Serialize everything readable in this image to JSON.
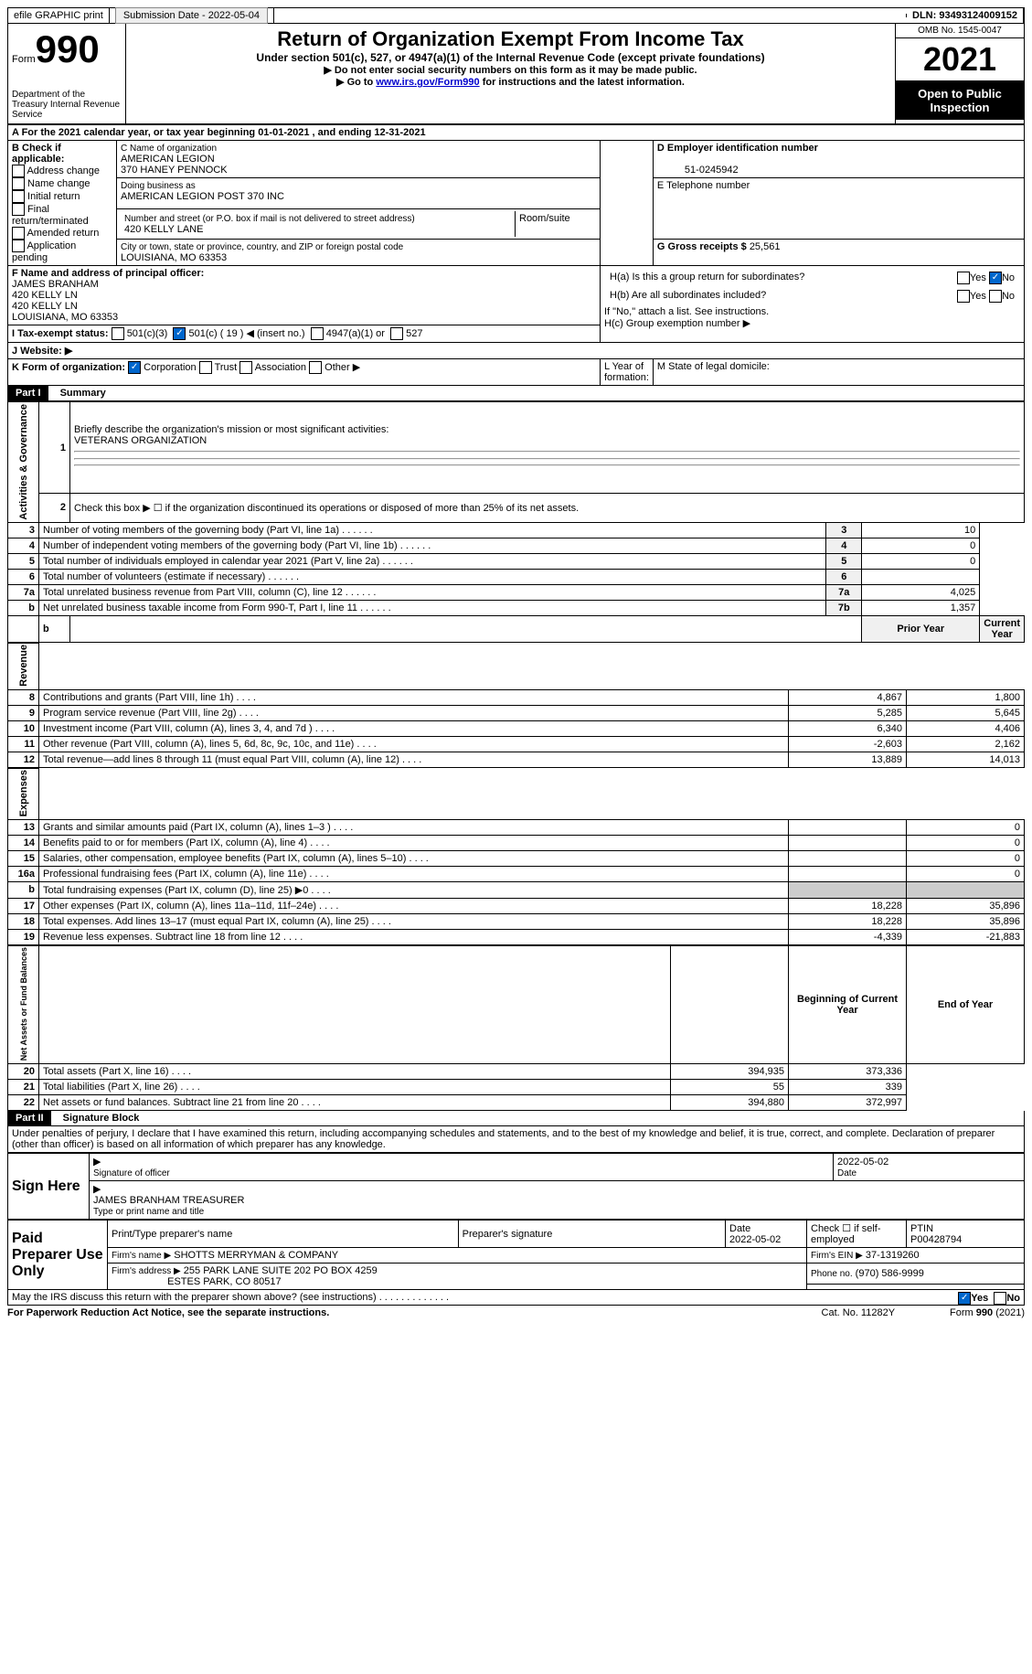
{
  "topbar": {
    "efile": "efile GRAPHIC print",
    "submission_label": "Submission Date - 2022-05-04",
    "dln_label": "DLN: 93493124009152"
  },
  "header": {
    "form_word": "Form",
    "form_number": "990",
    "dept": "Department of the Treasury Internal Revenue Service",
    "title": "Return of Organization Exempt From Income Tax",
    "subtitle": "Under section 501(c), 527, or 4947(a)(1) of the Internal Revenue Code (except private foundations)",
    "note1": "▶ Do not enter social security numbers on this form as it may be made public.",
    "note2_pre": "▶ Go to ",
    "note2_link": "www.irs.gov/Form990",
    "note2_post": " for instructions and the latest information.",
    "omb": "OMB No. 1545-0047",
    "year": "2021",
    "inspection": "Open to Public Inspection"
  },
  "lineA": "A For the 2021 calendar year, or tax year beginning 01-01-2021    , and ending 12-31-2021",
  "blockB": {
    "label": "B Check if applicable:",
    "opts": [
      "Address change",
      "Name change",
      "Initial return",
      "Final return/terminated",
      "Amended return",
      "Application pending"
    ]
  },
  "blockC": {
    "label": "C Name of organization",
    "name1": "AMERICAN LEGION",
    "name2": "370 HANEY PENNOCK",
    "dba_label": "Doing business as",
    "dba": "AMERICAN LEGION POST 370 INC",
    "street_label": "Number and street (or P.O. box if mail is not delivered to street address)",
    "street": "420 KELLY LANE",
    "room_label": "Room/suite",
    "city_label": "City or town, state or province, country, and ZIP or foreign postal code",
    "city": "LOUISIANA, MO  63353"
  },
  "blockD": {
    "label": "D Employer identification number",
    "value": "51-0245942"
  },
  "blockE": {
    "label": "E Telephone number"
  },
  "blockG": {
    "label": "G Gross receipts $ ",
    "value": "25,561"
  },
  "blockF": {
    "label": "F  Name and address of principal officer:",
    "name": "JAMES BRANHAM",
    "l1": "420 KELLY LN",
    "l2": "420 KELLY LN",
    "l3": "LOUISIANA, MO  63353"
  },
  "blockH": {
    "ha": "H(a)  Is this a group return for subordinates?",
    "hb": "H(b)  Are all subordinates included?",
    "hnote": "If \"No,\" attach a list. See instructions.",
    "hc": "H(c)  Group exemption number ▶",
    "yes": "Yes",
    "no": "No"
  },
  "lineI": {
    "label": "I    Tax-exempt status:",
    "c3": "501(c)(3)",
    "c": "501(c) ( 19 ) ◀ (insert no.)",
    "a1": "4947(a)(1) or",
    "s527": "527"
  },
  "lineJ": "J   Website: ▶",
  "lineK": {
    "label": "K Form of organization:",
    "corp": "Corporation",
    "trust": "Trust",
    "assoc": "Association",
    "other": "Other ▶"
  },
  "lineL": "L Year of formation:",
  "lineM": "M State of legal domicile:",
  "part1": {
    "title": "Part I",
    "heading": "Summary",
    "side_gov": "Activities & Governance",
    "side_rev": "Revenue",
    "side_exp": "Expenses",
    "side_net": "Net Assets or Fund Balances",
    "l1": "Briefly describe the organization's mission or most significant activities:",
    "mission": "VETERANS ORGANIZATION",
    "l2": "Check this box ▶ ☐  if the organization discontinued its operations or disposed of more than 25% of its net assets.",
    "rows_gov": [
      {
        "n": "3",
        "t": "Number of voting members of the governing body (Part VI, line 1a)",
        "b": "3",
        "v": "10"
      },
      {
        "n": "4",
        "t": "Number of independent voting members of the governing body (Part VI, line 1b)",
        "b": "4",
        "v": "0"
      },
      {
        "n": "5",
        "t": "Total number of individuals employed in calendar year 2021 (Part V, line 2a)",
        "b": "5",
        "v": "0"
      },
      {
        "n": "6",
        "t": "Total number of volunteers (estimate if necessary)",
        "b": "6",
        "v": ""
      },
      {
        "n": "7a",
        "t": "Total unrelated business revenue from Part VIII, column (C), line 12",
        "b": "7a",
        "v": "4,025"
      },
      {
        "n": "b",
        "t": "Net unrelated business taxable income from Form 990-T, Part I, line 11",
        "b": "7b",
        "v": "1,357"
      }
    ],
    "prior": "Prior Year",
    "current": "Current Year",
    "rows_rev": [
      {
        "n": "8",
        "t": "Contributions and grants (Part VIII, line 1h)",
        "p": "4,867",
        "c": "1,800"
      },
      {
        "n": "9",
        "t": "Program service revenue (Part VIII, line 2g)",
        "p": "5,285",
        "c": "5,645"
      },
      {
        "n": "10",
        "t": "Investment income (Part VIII, column (A), lines 3, 4, and 7d )",
        "p": "6,340",
        "c": "4,406"
      },
      {
        "n": "11",
        "t": "Other revenue (Part VIII, column (A), lines 5, 6d, 8c, 9c, 10c, and 11e)",
        "p": "-2,603",
        "c": "2,162"
      },
      {
        "n": "12",
        "t": "Total revenue—add lines 8 through 11 (must equal Part VIII, column (A), line 12)",
        "p": "13,889",
        "c": "14,013"
      }
    ],
    "rows_exp": [
      {
        "n": "13",
        "t": "Grants and similar amounts paid (Part IX, column (A), lines 1–3 )",
        "p": "",
        "c": "0"
      },
      {
        "n": "14",
        "t": "Benefits paid to or for members (Part IX, column (A), line 4)",
        "p": "",
        "c": "0"
      },
      {
        "n": "15",
        "t": "Salaries, other compensation, employee benefits (Part IX, column (A), lines 5–10)",
        "p": "",
        "c": "0"
      },
      {
        "n": "16a",
        "t": "Professional fundraising fees (Part IX, column (A), line 11e)",
        "p": "",
        "c": "0"
      },
      {
        "n": "b",
        "t": "Total fundraising expenses (Part IX, column (D), line 25) ▶0",
        "p": "gray",
        "c": "gray"
      },
      {
        "n": "17",
        "t": "Other expenses (Part IX, column (A), lines 11a–11d, 11f–24e)",
        "p": "18,228",
        "c": "35,896"
      },
      {
        "n": "18",
        "t": "Total expenses. Add lines 13–17 (must equal Part IX, column (A), line 25)",
        "p": "18,228",
        "c": "35,896"
      },
      {
        "n": "19",
        "t": "Revenue less expenses. Subtract line 18 from line 12",
        "p": "-4,339",
        "c": "-21,883"
      }
    ],
    "begin": "Beginning of Current Year",
    "end": "End of Year",
    "rows_net": [
      {
        "n": "20",
        "t": "Total assets (Part X, line 16)",
        "p": "394,935",
        "c": "373,336"
      },
      {
        "n": "21",
        "t": "Total liabilities (Part X, line 26)",
        "p": "55",
        "c": "339"
      },
      {
        "n": "22",
        "t": "Net assets or fund balances. Subtract line 21 from line 20",
        "p": "394,880",
        "c": "372,997"
      }
    ]
  },
  "part2": {
    "title": "Part II",
    "heading": "Signature Block",
    "decl": "Under penalties of perjury, I declare that I have examined this return, including accompanying schedules and statements, and to the best of my knowledge and belief, it is true, correct, and complete. Declaration of preparer (other than officer) is based on all information of which preparer has any knowledge.",
    "sign_here": "Sign Here",
    "sig_officer": "Signature of officer",
    "sig_date": "2022-05-02",
    "date_label": "Date",
    "officer_name": "JAMES BRANHAM  TREASURER",
    "type_name": "Type or print name and title",
    "paid": "Paid Preparer Use Only",
    "print_name": "Print/Type preparer's name",
    "prep_sig": "Preparer's signature",
    "prep_date_label": "Date",
    "prep_date": "2022-05-02",
    "check_self": "Check ☐ if self-employed",
    "ptin_label": "PTIN",
    "ptin": "P00428794",
    "firm_name_label": "Firm's name    ▶",
    "firm_name": "SHOTTS MERRYMAN & COMPANY",
    "firm_ein_label": "Firm's EIN ▶",
    "firm_ein": "37-1319260",
    "firm_addr_label": "Firm's address ▶",
    "firm_addr1": "255 PARK LANE SUITE 202 PO BOX 4259",
    "firm_addr2": "ESTES PARK, CO  80517",
    "phone_label": "Phone no.",
    "phone": "(970) 586-9999",
    "discuss": "May the IRS discuss this return with the preparer shown above? (see instructions)",
    "yes": "Yes",
    "no": "No"
  },
  "footer": {
    "pra": "For Paperwork Reduction Act Notice, see the separate instructions.",
    "cat": "Cat. No. 11282Y",
    "form": "Form 990 (2021)"
  }
}
